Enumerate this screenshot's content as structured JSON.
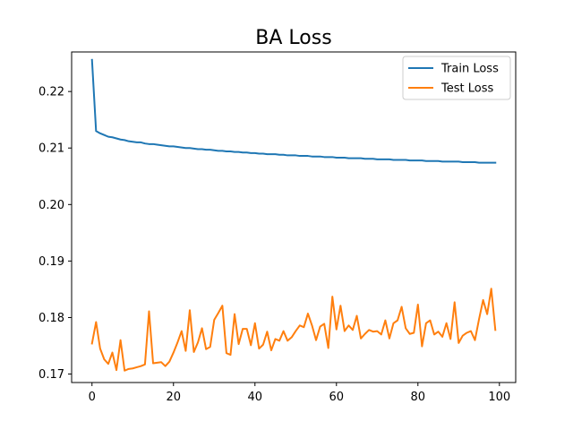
{
  "chart_data": {
    "type": "line",
    "title": "BA Loss",
    "xlabel": "",
    "ylabel": "",
    "xlim": [
      -5,
      104
    ],
    "ylim": [
      0.1685,
      0.227
    ],
    "x_ticks": [
      0,
      20,
      40,
      60,
      80,
      100
    ],
    "y_ticks": [
      0.17,
      0.18,
      0.19,
      0.2,
      0.21,
      0.22
    ],
    "y_tick_labels": [
      "0.17",
      "0.18",
      "0.19",
      "0.20",
      "0.21",
      "0.22"
    ],
    "grid": false,
    "legend_position": "top-right",
    "series": [
      {
        "name": "Train Loss",
        "color": "#1f77b4",
        "x": [
          0,
          1,
          2,
          3,
          4,
          5,
          6,
          7,
          8,
          9,
          10,
          11,
          12,
          13,
          14,
          15,
          16,
          17,
          18,
          19,
          20,
          21,
          22,
          23,
          24,
          25,
          26,
          27,
          28,
          29,
          30,
          31,
          32,
          33,
          34,
          35,
          36,
          37,
          38,
          39,
          40,
          41,
          42,
          43,
          44,
          45,
          46,
          47,
          48,
          49,
          50,
          51,
          52,
          53,
          54,
          55,
          56,
          57,
          58,
          59,
          60,
          61,
          62,
          63,
          64,
          65,
          66,
          67,
          68,
          69,
          70,
          71,
          72,
          73,
          74,
          75,
          76,
          77,
          78,
          79,
          80,
          81,
          82,
          83,
          84,
          85,
          86,
          87,
          88,
          89,
          90,
          91,
          92,
          93,
          94,
          95,
          96,
          97,
          98,
          99
        ],
        "values": [
          0.2256,
          0.213,
          0.2126,
          0.2123,
          0.212,
          0.2119,
          0.2117,
          0.2115,
          0.2114,
          0.2112,
          0.2111,
          0.211,
          0.211,
          0.2108,
          0.2107,
          0.2107,
          0.2106,
          0.2105,
          0.2104,
          0.2103,
          0.2103,
          0.2102,
          0.2101,
          0.21,
          0.21,
          0.2099,
          0.2098,
          0.2098,
          0.2097,
          0.2097,
          0.2096,
          0.2095,
          0.2095,
          0.2094,
          0.2094,
          0.2093,
          0.2093,
          0.2092,
          0.2092,
          0.2091,
          0.2091,
          0.209,
          0.209,
          0.2089,
          0.2089,
          0.2089,
          0.2088,
          0.2088,
          0.2087,
          0.2087,
          0.2087,
          0.2086,
          0.2086,
          0.2086,
          0.2085,
          0.2085,
          0.2085,
          0.2084,
          0.2084,
          0.2084,
          0.2083,
          0.2083,
          0.2083,
          0.2082,
          0.2082,
          0.2082,
          0.2082,
          0.2081,
          0.2081,
          0.2081,
          0.208,
          0.208,
          0.208,
          0.208,
          0.2079,
          0.2079,
          0.2079,
          0.2079,
          0.2078,
          0.2078,
          0.2078,
          0.2078,
          0.2077,
          0.2077,
          0.2077,
          0.2077,
          0.2076,
          0.2076,
          0.2076,
          0.2076,
          0.2076,
          0.2075,
          0.2075,
          0.2075,
          0.2075,
          0.2074,
          0.2074,
          0.2074,
          0.2074,
          0.2074
        ]
      },
      {
        "name": "Test Loss",
        "color": "#ff7f0e",
        "x": [
          0,
          1,
          2,
          3,
          4,
          5,
          6,
          7,
          8,
          9,
          10,
          11,
          12,
          13,
          14,
          15,
          16,
          17,
          18,
          19,
          20,
          21,
          22,
          23,
          24,
          25,
          26,
          27,
          28,
          29,
          30,
          31,
          32,
          33,
          34,
          35,
          36,
          37,
          38,
          39,
          40,
          41,
          42,
          43,
          44,
          45,
          46,
          47,
          48,
          49,
          50,
          51,
          52,
          53,
          54,
          55,
          56,
          57,
          58,
          59,
          60,
          61,
          62,
          63,
          64,
          65,
          66,
          67,
          68,
          69,
          70,
          71,
          72,
          73,
          74,
          75,
          76,
          77,
          78,
          79,
          80,
          81,
          82,
          83,
          84,
          85,
          86,
          87,
          88,
          89,
          90,
          91,
          92,
          93,
          94,
          95,
          96,
          97,
          98,
          99
        ],
        "values": [
          0.1754,
          0.1792,
          0.1745,
          0.1726,
          0.1718,
          0.1738,
          0.1707,
          0.176,
          0.1706,
          0.1709,
          0.171,
          0.1712,
          0.1714,
          0.1717,
          0.1811,
          0.1719,
          0.172,
          0.1721,
          0.1714,
          0.1722,
          0.1738,
          0.1756,
          0.1776,
          0.1741,
          0.1813,
          0.1739,
          0.1756,
          0.1781,
          0.1744,
          0.1748,
          0.1796,
          0.1808,
          0.1821,
          0.1737,
          0.1734,
          0.1806,
          0.1753,
          0.178,
          0.178,
          0.1751,
          0.179,
          0.1745,
          0.1752,
          0.1775,
          0.1742,
          0.1762,
          0.1759,
          0.1776,
          0.1759,
          0.1765,
          0.1776,
          0.1786,
          0.1783,
          0.1807,
          0.1786,
          0.176,
          0.1784,
          0.1789,
          0.1746,
          0.1837,
          0.1779,
          0.1821,
          0.1776,
          0.1786,
          0.1778,
          0.1803,
          0.1763,
          0.1771,
          0.1778,
          0.1775,
          0.1776,
          0.177,
          0.1795,
          0.1763,
          0.179,
          0.1795,
          0.1819,
          0.1781,
          0.1771,
          0.1773,
          0.1823,
          0.1749,
          0.179,
          0.1795,
          0.177,
          0.1775,
          0.1766,
          0.179,
          0.1762,
          0.1827,
          0.1755,
          0.1768,
          0.1773,
          0.1776,
          0.176,
          0.1797,
          0.1831,
          0.1806,
          0.1851,
          0.1778
        ]
      }
    ]
  }
}
